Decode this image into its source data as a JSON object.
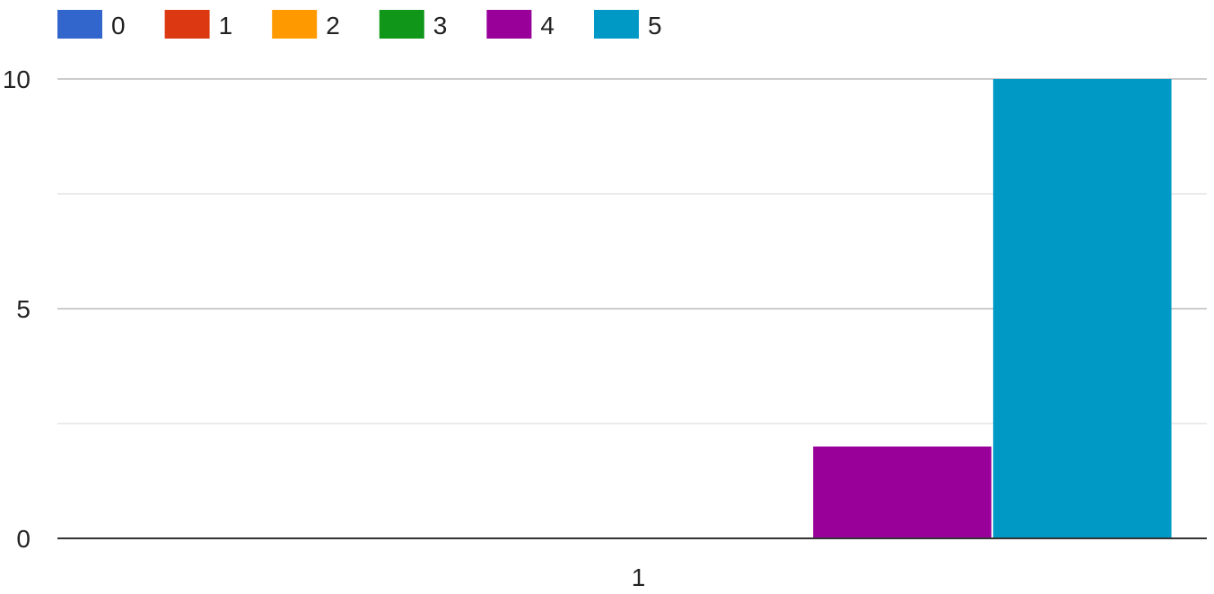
{
  "chart_data": {
    "type": "bar",
    "categories": [
      "1"
    ],
    "series": [
      {
        "name": "0",
        "color": "#3366cc",
        "values": [
          0
        ]
      },
      {
        "name": "1",
        "color": "#dc3912",
        "values": [
          0
        ]
      },
      {
        "name": "2",
        "color": "#ff9900",
        "values": [
          0
        ]
      },
      {
        "name": "3",
        "color": "#109618",
        "values": [
          0
        ]
      },
      {
        "name": "4",
        "color": "#990099",
        "values": [
          2
        ]
      },
      {
        "name": "5",
        "color": "#0099c6",
        "values": [
          10
        ]
      }
    ],
    "yticks": [
      0,
      5,
      10
    ],
    "ylim": [
      0,
      10
    ],
    "grid": true,
    "legend_position": "top-left",
    "title": "",
    "xlabel": "",
    "ylabel": ""
  }
}
